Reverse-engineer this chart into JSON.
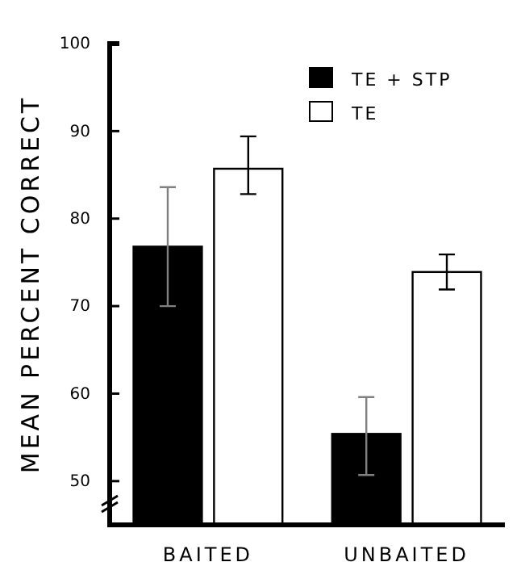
{
  "chart_data": {
    "type": "bar",
    "ylabel": "MEAN PERCENT CORRECT",
    "categories": [
      "BAITED",
      "UNBAITED"
    ],
    "series": [
      {
        "name": "TE + STP",
        "color": "#000000",
        "values": [
          76.8,
          55.4
        ],
        "errors": [
          [
            70.0,
            83.6
          ],
          [
            50.7,
            59.6
          ]
        ]
      },
      {
        "name": "TE",
        "color": "#ffffff",
        "values": [
          85.7,
          73.9
        ],
        "errors": [
          [
            82.8,
            89.4
          ],
          [
            71.9,
            75.9
          ]
        ]
      }
    ],
    "ylim": [
      45,
      100
    ],
    "yticks": [
      50,
      60,
      70,
      80,
      90,
      100
    ],
    "grid": false,
    "legend": "top right"
  }
}
